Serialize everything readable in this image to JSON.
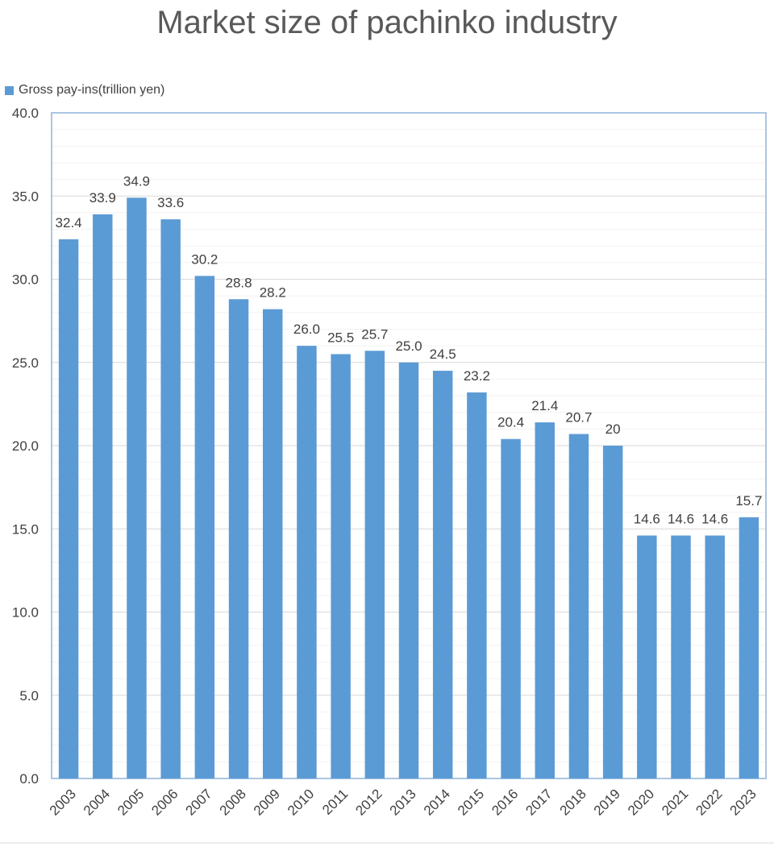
{
  "chart_data": {
    "type": "bar",
    "title": "Market size of pachinko industry",
    "xlabel": "",
    "ylabel": "",
    "ylim": [
      0,
      40
    ],
    "yticks": [
      "0.0",
      "5.0",
      "10.0",
      "15.0",
      "20.0",
      "25.0",
      "30.0",
      "35.0",
      "40.0"
    ],
    "grid": true,
    "legend": "top-left",
    "categories": [
      "2003",
      "2004",
      "2005",
      "2006",
      "2007",
      "2008",
      "2009",
      "2010",
      "2011",
      "2012",
      "2013",
      "2014",
      "2015",
      "2016",
      "2017",
      "2018",
      "2019",
      "2020",
      "2021",
      "2022",
      "2023"
    ],
    "series": [
      {
        "name": "Gross pay-ins(trillion yen)",
        "color": "#5b9bd5",
        "values": [
          32.4,
          33.9,
          34.9,
          33.6,
          30.2,
          28.8,
          28.2,
          26.0,
          25.5,
          25.7,
          25.0,
          24.5,
          23.2,
          20.4,
          21.4,
          20.7,
          20,
          14.6,
          14.6,
          14.6,
          15.7
        ],
        "labels": [
          "32.4",
          "33.9",
          "34.9",
          "33.6",
          "30.2",
          "28.8",
          "28.2",
          "26.0",
          "25.5",
          "25.7",
          "25.0",
          "24.5",
          "23.2",
          "20.4",
          "21.4",
          "20.7",
          "20",
          "14.6",
          "14.6",
          "14.6",
          "15.7"
        ]
      }
    ]
  }
}
